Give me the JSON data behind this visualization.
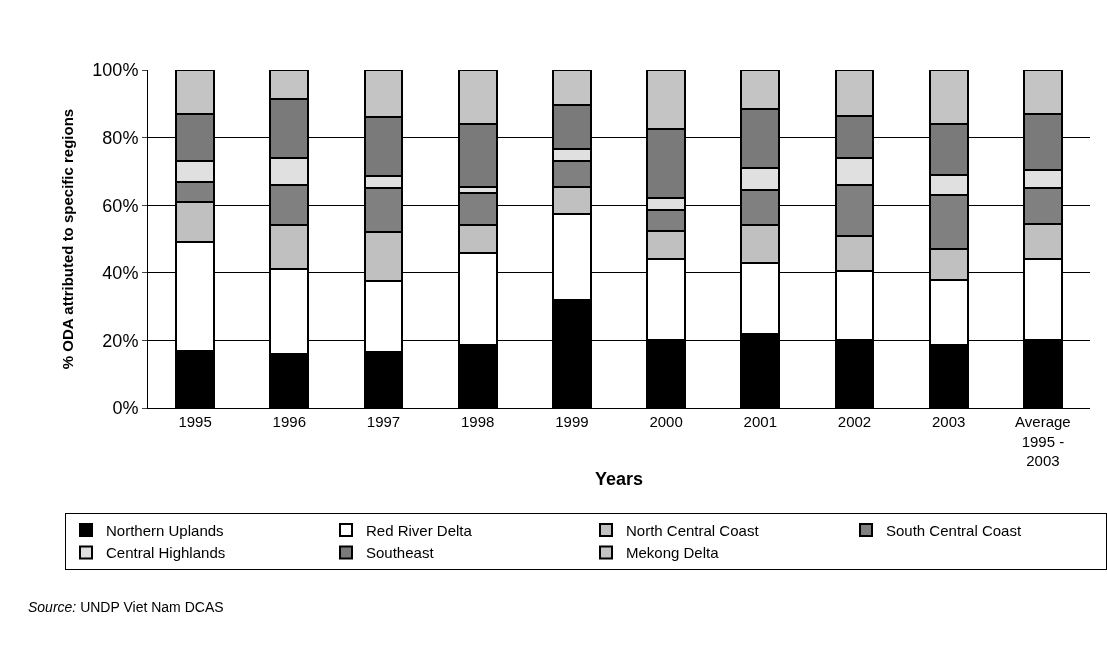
{
  "chart_data": {
    "type": "bar",
    "stacked": true,
    "xlabel": "Years",
    "ylabel": "% ODA attributed to specific regions",
    "categories": [
      "1995",
      "1996",
      "1997",
      "1998",
      "1999",
      "2000",
      "2001",
      "2002",
      "2003",
      "Average 1995 - 2003"
    ],
    "series": [
      {
        "name": "Northern Uplands",
        "color": "#000000",
        "values": [
          17,
          16,
          16.5,
          18.5,
          32,
          20,
          22,
          20,
          18.5,
          20
        ]
      },
      {
        "name": "Red River Delta",
        "color": "#ffffff",
        "values": [
          32,
          25,
          21,
          27.5,
          25.5,
          24,
          21,
          20.5,
          19.5,
          24
        ]
      },
      {
        "name": "North Central Coast",
        "color": "#c0c0c0",
        "values": [
          12,
          13,
          14.5,
          8,
          8,
          8.5,
          11,
          10.5,
          9,
          10.5
        ]
      },
      {
        "name": "South Central Coast",
        "color": "#808080",
        "values": [
          6,
          12,
          13,
          9.5,
          7.5,
          6,
          10.5,
          15,
          16,
          10.5
        ]
      },
      {
        "name": "Central Highlands",
        "color": "#e0e0e0",
        "values": [
          6,
          8,
          3.5,
          2,
          3.5,
          3.5,
          6.5,
          8,
          6,
          5.5
        ]
      },
      {
        "name": "Southeast",
        "color": "#7a7a7a",
        "values": [
          14,
          17.5,
          17.5,
          18.5,
          13,
          20.5,
          17.5,
          12.5,
          15,
          16.5
        ]
      },
      {
        "name": "Mekong Delta",
        "color": "#c4c4c4",
        "values": [
          13,
          8.5,
          14,
          16,
          10.5,
          17.5,
          11.5,
          13.5,
          16,
          13
        ]
      }
    ],
    "ylim": [
      0,
      100
    ],
    "yticks": [
      {
        "value": 0,
        "label": "0%"
      },
      {
        "value": 20,
        "label": "20%"
      },
      {
        "value": 40,
        "label": "40%"
      },
      {
        "value": 60,
        "label": "60%"
      },
      {
        "value": 80,
        "label": "80%"
      },
      {
        "value": 100,
        "label": "100%"
      }
    ],
    "grid": "y",
    "legend": "bottom",
    "annotations": [
      "Source: UNDP Viet Nam DCAS"
    ]
  }
}
